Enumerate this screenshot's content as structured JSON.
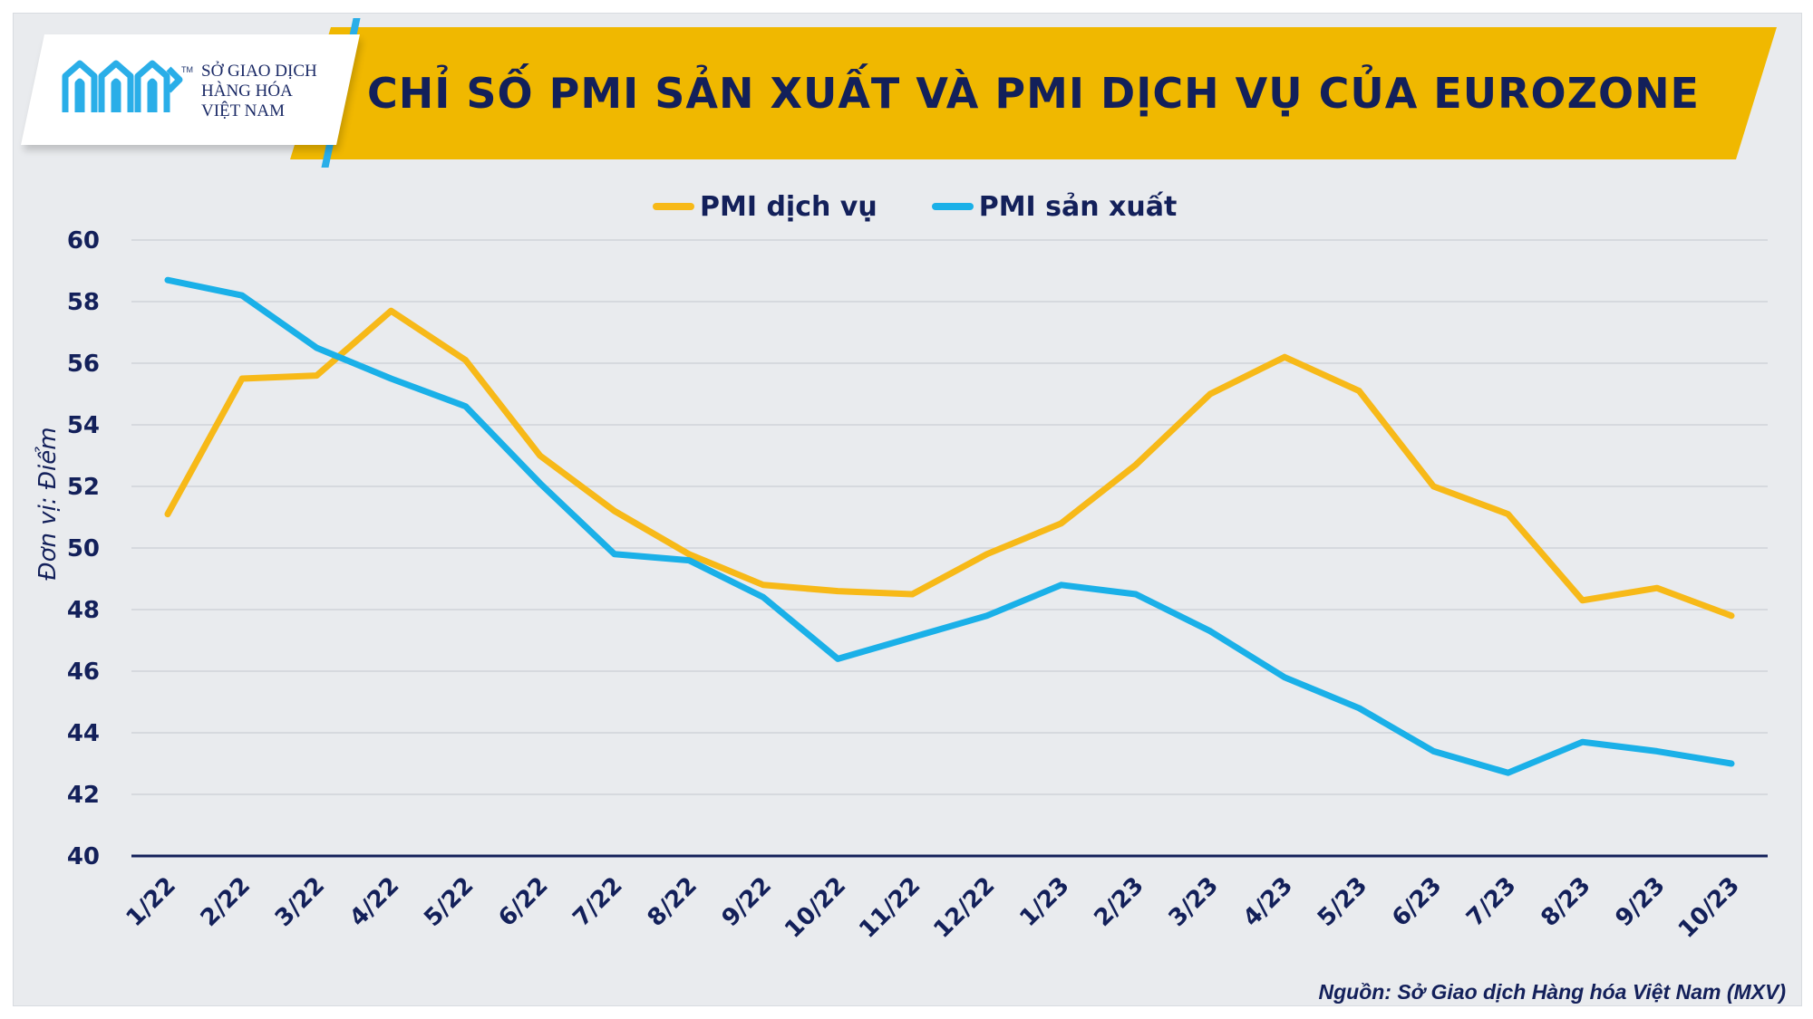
{
  "header": {
    "title": "CHỈ SỐ PMI SẢN XUẤT VÀ PMI DỊCH VỤ CỦA EUROZONE",
    "banner_color": "#f0b800",
    "title_color": "#13205a"
  },
  "logo": {
    "line1": "SỞ GIAO DỊCH",
    "line2": "HÀNG HÓA",
    "line3": "VIỆT NAM",
    "tm": "TM",
    "mark_color": "#2aaee8"
  },
  "source": "Nguồn: Sở Giao dịch Hàng hóa Việt Nam (MXV)",
  "chart_data": {
    "type": "line",
    "title": "CHỈ SỐ PMI SẢN XUẤT VÀ PMI DỊCH VỤ CỦA EUROZONE",
    "ylabel": "Đơn vị: Điểm",
    "xlabel": "",
    "ylim": [
      40,
      60
    ],
    "yticks": [
      40,
      42,
      44,
      46,
      48,
      50,
      52,
      54,
      56,
      58,
      60
    ],
    "grid": true,
    "legend_position": "top-center",
    "categories": [
      "1/22",
      "2/22",
      "3/22",
      "4/22",
      "5/22",
      "6/22",
      "7/22",
      "8/22",
      "9/22",
      "10/22",
      "11/22",
      "12/22",
      "1/23",
      "2/23",
      "3/23",
      "4/23",
      "5/23",
      "6/23",
      "7/23",
      "8/23",
      "9/23",
      "10/23"
    ],
    "series": [
      {
        "name": "PMI dịch vụ",
        "color": "#f7b918",
        "values": [
          51.1,
          55.5,
          55.6,
          57.7,
          56.1,
          53.0,
          51.2,
          49.8,
          48.8,
          48.6,
          48.5,
          49.8,
          50.8,
          52.7,
          55.0,
          56.2,
          55.1,
          52.0,
          51.1,
          48.3,
          48.7,
          47.8
        ]
      },
      {
        "name": "PMI sản xuất",
        "color": "#1ab0e8",
        "values": [
          58.7,
          58.2,
          56.5,
          55.5,
          54.6,
          52.1,
          49.8,
          49.6,
          48.4,
          46.4,
          47.1,
          47.8,
          48.8,
          48.5,
          47.3,
          45.8,
          44.8,
          43.4,
          42.7,
          43.7,
          43.4,
          43.0
        ]
      }
    ]
  }
}
